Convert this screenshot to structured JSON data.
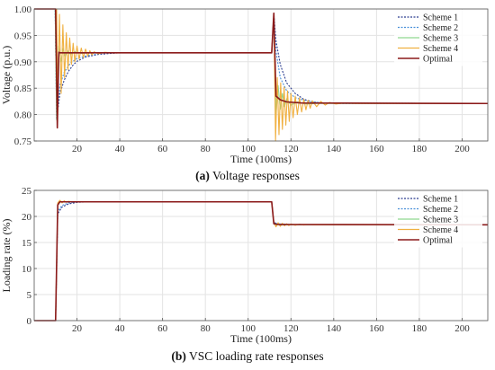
{
  "chart_data": [
    {
      "type": "line",
      "caption_tag": "(a)",
      "caption_text": " Voltage responses",
      "xlabel": "Time (100ms)",
      "ylabel": "Voltage (p.u.)",
      "xlim": [
        0,
        212
      ],
      "ylim": [
        0.75,
        1.0
      ],
      "xticks": [
        20,
        40,
        60,
        80,
        100,
        120,
        140,
        160,
        180,
        200
      ],
      "yticks": [
        0.75,
        0.8,
        0.85,
        0.9,
        0.95,
        1.0
      ],
      "ytick_labels": [
        "0.75",
        "0.80",
        "0.85",
        "0.90",
        "0.95",
        "1.00"
      ],
      "grid": true,
      "legend_position": "top-right",
      "series": [
        {
          "name": "Scheme 1",
          "color": "#2c3e8f",
          "style": "dotted",
          "points": [
            [
              0,
              1.0
            ],
            [
              9.8,
              1.0
            ],
            [
              10.5,
              0.79
            ],
            [
              12,
              0.84
            ],
            [
              14,
              0.865
            ],
            [
              16,
              0.882
            ],
            [
              18,
              0.893
            ],
            [
              20,
              0.901
            ],
            [
              24,
              0.909
            ],
            [
              30,
              0.914
            ],
            [
              40,
              0.917
            ],
            [
              111,
              0.917
            ],
            [
              112,
              0.99
            ],
            [
              113,
              0.94
            ],
            [
              115,
              0.895
            ],
            [
              118,
              0.86
            ],
            [
              122,
              0.84
            ],
            [
              126,
              0.829
            ],
            [
              130,
              0.824
            ],
            [
              135,
              0.822
            ],
            [
              145,
              0.821
            ],
            [
              212,
              0.821
            ]
          ]
        },
        {
          "name": "Scheme 2",
          "color": "#4a90d9",
          "style": "dotted",
          "points": [
            [
              0,
              1.0
            ],
            [
              9.8,
              1.0
            ],
            [
              10.5,
              0.79
            ],
            [
              12,
              0.855
            ],
            [
              14,
              0.88
            ],
            [
              17,
              0.898
            ],
            [
              20,
              0.906
            ],
            [
              25,
              0.912
            ],
            [
              32,
              0.916
            ],
            [
              40,
              0.917
            ],
            [
              111,
              0.917
            ],
            [
              112,
              0.99
            ],
            [
              113,
              0.92
            ],
            [
              115,
              0.87
            ],
            [
              118,
              0.845
            ],
            [
              122,
              0.832
            ],
            [
              128,
              0.825
            ],
            [
              135,
              0.822
            ],
            [
              212,
              0.821
            ]
          ]
        },
        {
          "name": "Scheme 3",
          "color": "#8fd68f",
          "style": "solid",
          "points": [
            [
              0,
              1.0
            ],
            [
              9.8,
              1.0
            ],
            [
              10.5,
              0.79
            ],
            [
              11.5,
              0.93
            ],
            [
              12.5,
              0.9
            ],
            [
              13.5,
              0.925
            ],
            [
              14.5,
              0.91
            ],
            [
              15.5,
              0.921
            ],
            [
              17,
              0.914
            ],
            [
              19,
              0.919
            ],
            [
              22,
              0.916
            ],
            [
              26,
              0.917
            ],
            [
              111,
              0.917
            ],
            [
              112,
              0.99
            ],
            [
              113,
              0.8
            ],
            [
              114,
              0.855
            ],
            [
              115,
              0.81
            ],
            [
              116,
              0.84
            ],
            [
              117,
              0.815
            ],
            [
              118,
              0.83
            ],
            [
              120,
              0.818
            ],
            [
              123,
              0.824
            ],
            [
              127,
              0.82
            ],
            [
              132,
              0.821
            ],
            [
              212,
              0.821
            ]
          ]
        },
        {
          "name": "Scheme 4",
          "color": "#f0b040",
          "style": "solid",
          "points": [
            [
              0,
              1.0
            ],
            [
              10.5,
              1.0
            ],
            [
              11,
              0.8
            ],
            [
              11.8,
              0.99
            ],
            [
              12.6,
              0.84
            ],
            [
              13.4,
              0.97
            ],
            [
              14.2,
              0.87
            ],
            [
              15,
              0.955
            ],
            [
              15.8,
              0.885
            ],
            [
              16.6,
              0.945
            ],
            [
              17.4,
              0.895
            ],
            [
              18.2,
              0.935
            ],
            [
              19,
              0.9
            ],
            [
              20,
              0.93
            ],
            [
              21,
              0.905
            ],
            [
              22,
              0.926
            ],
            [
              23,
              0.908
            ],
            [
              24,
              0.924
            ],
            [
              25,
              0.911
            ],
            [
              26,
              0.921
            ],
            [
              27,
              0.913
            ],
            [
              28,
              0.919
            ],
            [
              30,
              0.915
            ],
            [
              33,
              0.918
            ],
            [
              36,
              0.917
            ],
            [
              111,
              0.917
            ],
            [
              112,
              0.99
            ],
            [
              112.8,
              0.75
            ],
            [
              113.6,
              0.87
            ],
            [
              114.4,
              0.762
            ],
            [
              115.2,
              0.86
            ],
            [
              116,
              0.772
            ],
            [
              116.8,
              0.852
            ],
            [
              117.6,
              0.78
            ],
            [
              118.4,
              0.845
            ],
            [
              119.2,
              0.787
            ],
            [
              120,
              0.84
            ],
            [
              121,
              0.794
            ],
            [
              122,
              0.835
            ],
            [
              123,
              0.8
            ],
            [
              124,
              0.832
            ],
            [
              125,
              0.805
            ],
            [
              126,
              0.829
            ],
            [
              127,
              0.809
            ],
            [
              128,
              0.827
            ],
            [
              129,
              0.812
            ],
            [
              130,
              0.826
            ],
            [
              132,
              0.815
            ],
            [
              134,
              0.825
            ],
            [
              136,
              0.818
            ],
            [
              138,
              0.823
            ],
            [
              141,
              0.82
            ],
            [
              145,
              0.822
            ],
            [
              150,
              0.821
            ],
            [
              212,
              0.821
            ]
          ]
        },
        {
          "name": "Optimal",
          "color": "#8b1a1a",
          "style": "solid",
          "points": [
            [
              0,
              1.0
            ],
            [
              10,
              1.0
            ],
            [
              10.8,
              0.775
            ],
            [
              11.5,
              0.918
            ],
            [
              12,
              0.917
            ],
            [
              111,
              0.917
            ],
            [
              112,
              0.992
            ],
            [
              113,
              0.835
            ],
            [
              115,
              0.828
            ],
            [
              118,
              0.824
            ],
            [
              125,
              0.822
            ],
            [
              212,
              0.821
            ]
          ]
        }
      ]
    },
    {
      "type": "line",
      "caption_tag": "(b)",
      "caption_text": " VSC loading rate responses",
      "xlabel": "Time (100ms)",
      "ylabel": "Loading rate (%)",
      "xlim": [
        0,
        212
      ],
      "ylim": [
        0,
        25
      ],
      "xticks": [
        20,
        40,
        60,
        80,
        100,
        120,
        140,
        160,
        180,
        200
      ],
      "yticks": [
        0,
        5,
        10,
        15,
        20,
        25
      ],
      "ytick_labels": [
        "0",
        "5",
        "10",
        "15",
        "20",
        "25"
      ],
      "grid": true,
      "legend_position": "top-right",
      "series": [
        {
          "name": "Scheme 1",
          "color": "#2c3e8f",
          "style": "dotted",
          "points": [
            [
              0,
              0
            ],
            [
              10,
              0
            ],
            [
              11,
              20.5
            ],
            [
              13,
              21.8
            ],
            [
              16,
              22.4
            ],
            [
              20,
              22.7
            ],
            [
              25,
              22.8
            ],
            [
              111,
              22.8
            ],
            [
              112,
              18.8
            ],
            [
              115,
              18.55
            ],
            [
              120,
              18.45
            ],
            [
              130,
              18.4
            ],
            [
              212,
              18.4
            ]
          ]
        },
        {
          "name": "Scheme 2",
          "color": "#4a90d9",
          "style": "dotted",
          "points": [
            [
              0,
              0
            ],
            [
              10,
              0
            ],
            [
              11,
              21.0
            ],
            [
              13,
              22.1
            ],
            [
              16,
              22.6
            ],
            [
              20,
              22.8
            ],
            [
              111,
              22.8
            ],
            [
              112,
              18.7
            ],
            [
              116,
              18.5
            ],
            [
              125,
              18.4
            ],
            [
              212,
              18.4
            ]
          ]
        },
        {
          "name": "Scheme 3",
          "color": "#8fd68f",
          "style": "solid",
          "points": [
            [
              0,
              0
            ],
            [
              10,
              0
            ],
            [
              11,
              22.3
            ],
            [
              12,
              23.0
            ],
            [
              13,
              22.7
            ],
            [
              14,
              22.85
            ],
            [
              16,
              22.8
            ],
            [
              111,
              22.8
            ],
            [
              112,
              18.6
            ],
            [
              113,
              18.2
            ],
            [
              114,
              18.5
            ],
            [
              115,
              18.3
            ],
            [
              117,
              18.42
            ],
            [
              120,
              18.4
            ],
            [
              212,
              18.4
            ]
          ]
        },
        {
          "name": "Scheme 4",
          "color": "#f0b040",
          "style": "solid",
          "points": [
            [
              0,
              0
            ],
            [
              10,
              0
            ],
            [
              11,
              22.6
            ],
            [
              12,
              23.1
            ],
            [
              13,
              22.6
            ],
            [
              14,
              23.0
            ],
            [
              15,
              22.7
            ],
            [
              16,
              22.9
            ],
            [
              18,
              22.8
            ],
            [
              111,
              22.8
            ],
            [
              112,
              18.9
            ],
            [
              113,
              18.0
            ],
            [
              114,
              18.8
            ],
            [
              115,
              18.1
            ],
            [
              116,
              18.7
            ],
            [
              117,
              18.2
            ],
            [
              118,
              18.6
            ],
            [
              119,
              18.25
            ],
            [
              120,
              18.55
            ],
            [
              122,
              18.3
            ],
            [
              124,
              18.5
            ],
            [
              126,
              18.35
            ],
            [
              128,
              18.45
            ],
            [
              131,
              18.38
            ],
            [
              135,
              18.42
            ],
            [
              140,
              18.4
            ],
            [
              212,
              18.4
            ]
          ]
        },
        {
          "name": "Optimal",
          "color": "#8b1a1a",
          "style": "solid",
          "points": [
            [
              0,
              0
            ],
            [
              10,
              0
            ],
            [
              11,
              22.2
            ],
            [
              12,
              22.8
            ],
            [
              111,
              22.8
            ],
            [
              112,
              18.6
            ],
            [
              114,
              18.45
            ],
            [
              212,
              18.4
            ]
          ]
        }
      ]
    }
  ]
}
